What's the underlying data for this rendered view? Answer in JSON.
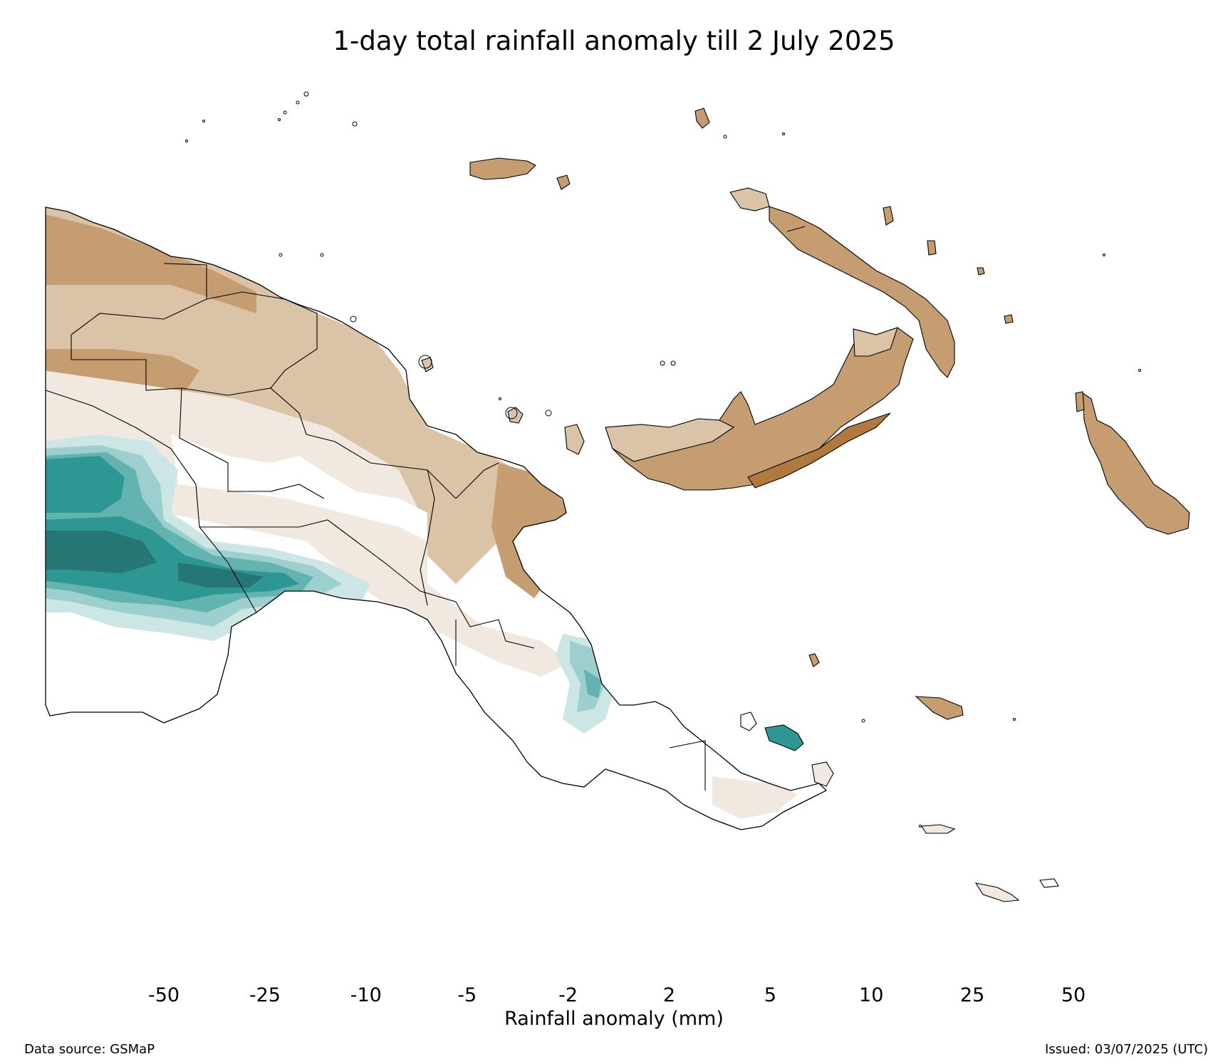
{
  "title": "1-day total rainfall anomaly till 2 July 2025",
  "colorbar": {
    "label": "Rainfall anomaly (mm)",
    "ticks": [
      "-50",
      "-25",
      "-10",
      "-5",
      "-2",
      "2",
      "5",
      "10",
      "25",
      "50"
    ],
    "colors": [
      "#9c5f2a",
      "#b07a3e",
      "#c59d70",
      "#dbc3a7",
      "#f1e8df",
      "#ffffff",
      "#cce6e5",
      "#9ccfcd",
      "#63b3b1",
      "#2f9793",
      "#257674"
    ],
    "extend": "both"
  },
  "footer": {
    "source": "Data source: GSMaP",
    "issued": "Issued: 03/07/2025 (UTC)"
  },
  "map_colors": {
    "coast": "#000000",
    "d50": "#9c5f2a",
    "d25": "#b07a3e",
    "d10": "#c59d70",
    "d5": "#dbc3a7",
    "d2": "#f1e8df",
    "w2": "#cce6e5",
    "w5": "#9ccfcd",
    "w10": "#63b3b1",
    "w25": "#2f9793",
    "w50": "#257674"
  }
}
